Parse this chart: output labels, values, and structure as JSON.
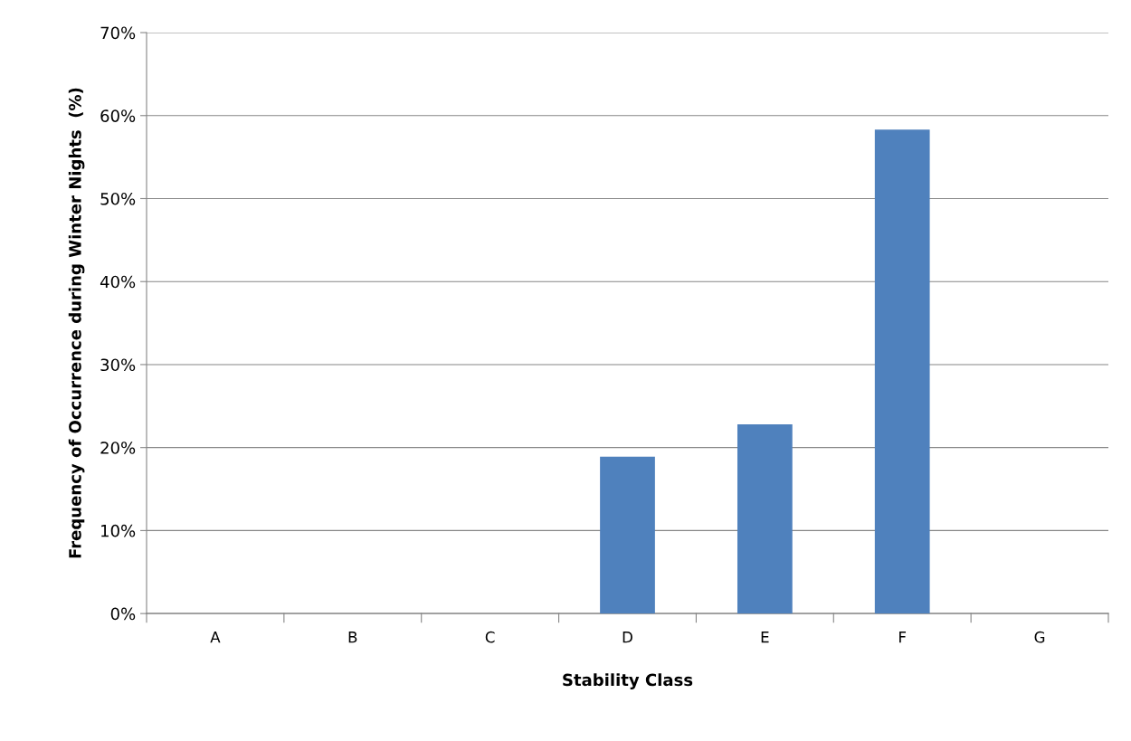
{
  "chart_data": {
    "type": "bar",
    "xlabel": "Stability Class",
    "ylabel": "Frequency of Occurrence during Winter Nights  (%)",
    "categories": [
      "A",
      "B",
      "C",
      "D",
      "E",
      "F",
      "G"
    ],
    "values": [
      0,
      0,
      0,
      18.9,
      22.8,
      58.3,
      0
    ],
    "color": "#4f81bd",
    "ylim": [
      0,
      70
    ],
    "yticks": [
      {
        "value": 0,
        "label": "0%"
      },
      {
        "value": 10,
        "label": "10%"
      },
      {
        "value": 20,
        "label": "20%"
      },
      {
        "value": 30,
        "label": "30%"
      },
      {
        "value": 40,
        "label": "40%"
      },
      {
        "value": 50,
        "label": "50%"
      },
      {
        "value": 60,
        "label": "60%"
      },
      {
        "value": 70,
        "label": "70%"
      }
    ],
    "grid": "y"
  }
}
